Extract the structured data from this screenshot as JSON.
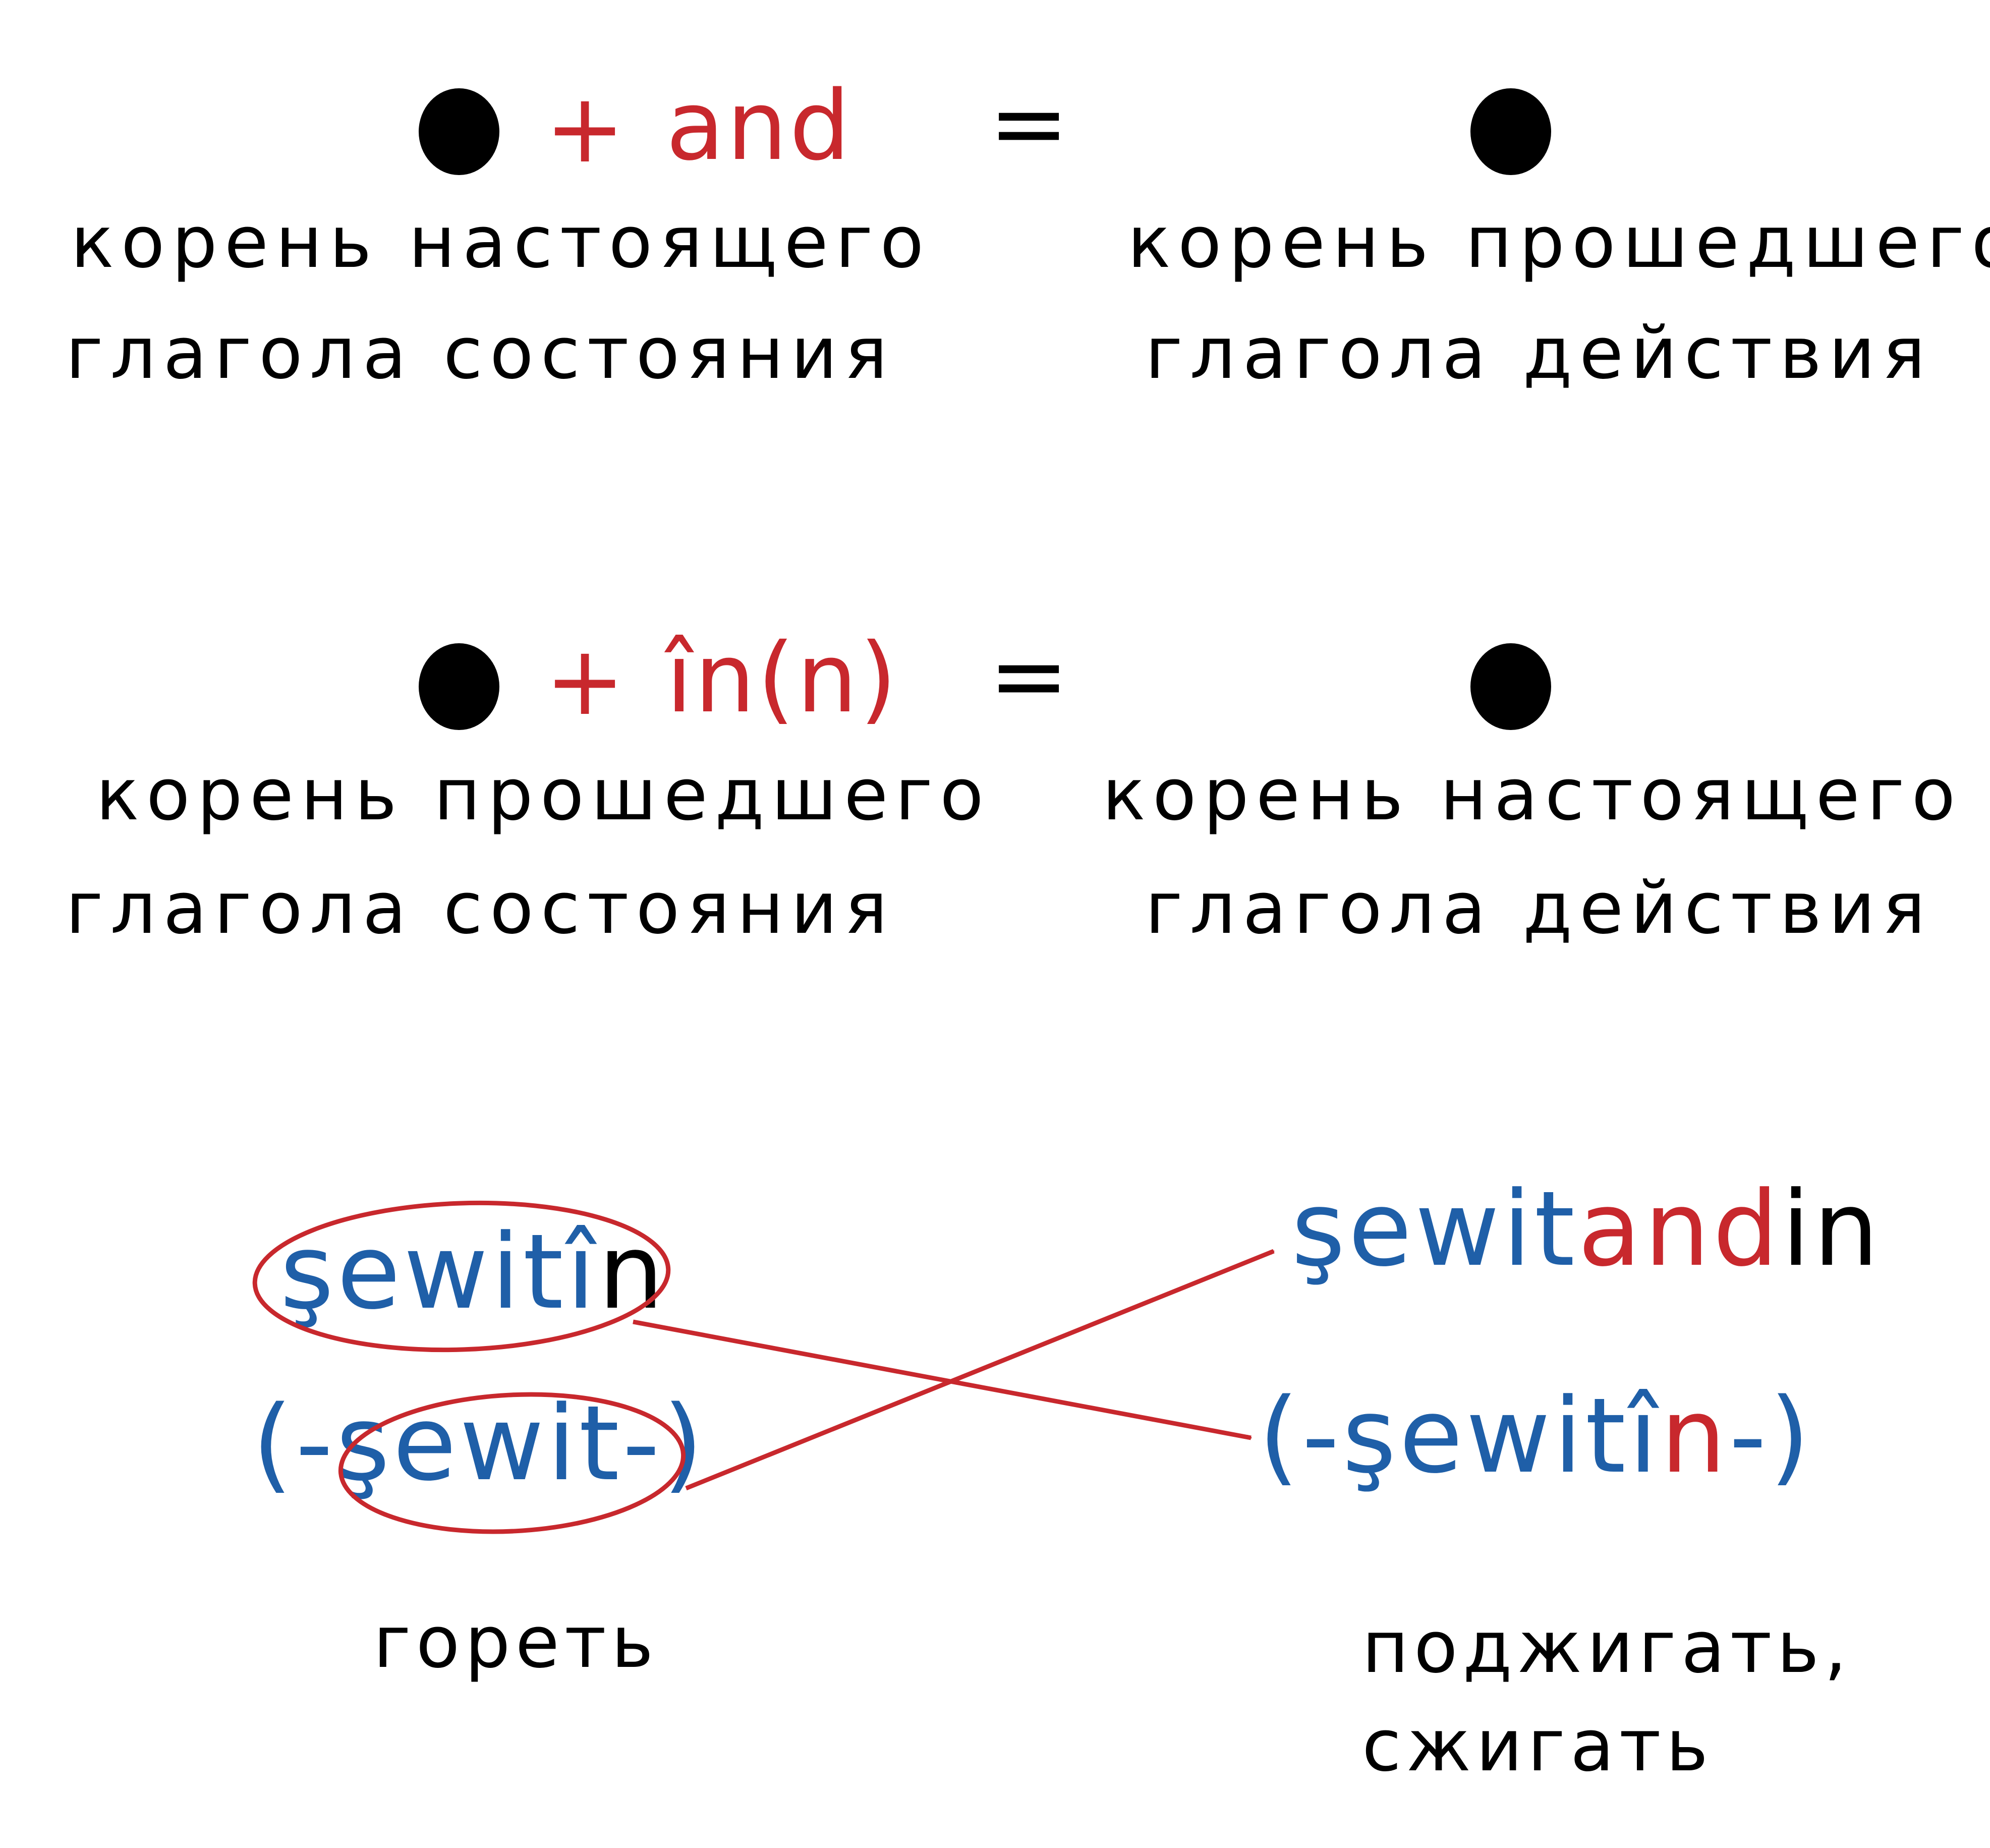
{
  "colors": {
    "ink": "#000000",
    "red": "#c8282d",
    "blue": "#1f5fa8"
  },
  "rule1": {
    "plus": "+",
    "suffix": "and",
    "equals": "=",
    "left_label_line1": "корень настоящего",
    "left_label_line2": "глагола состояния",
    "right_label_line1": "корень прошедшего",
    "right_label_line2": "глагола действия"
  },
  "rule2": {
    "plus": "+",
    "suffix": "în(n)",
    "equals": "=",
    "left_label_line1": "корень прошедшего",
    "left_label_line2": "глагола состояния",
    "right_label_line1": "корень настоящего",
    "right_label_line2": "глагола действия"
  },
  "example": {
    "left_infinitive_root": "şewitî",
    "left_infinitive_end": "n",
    "left_present_open": "(-",
    "left_present_root": "şewit",
    "left_present_close": "-)",
    "left_gloss": "гореть",
    "right_infinitive_root": "şewit",
    "right_infinitive_suffix": "and",
    "right_infinitive_end": "in",
    "right_present_open": "(-",
    "right_present_root": "şewitî",
    "right_present_suffix": "n",
    "right_present_close": "-)",
    "right_gloss_line1": "поджигать,",
    "right_gloss_line2": "сжигать"
  }
}
